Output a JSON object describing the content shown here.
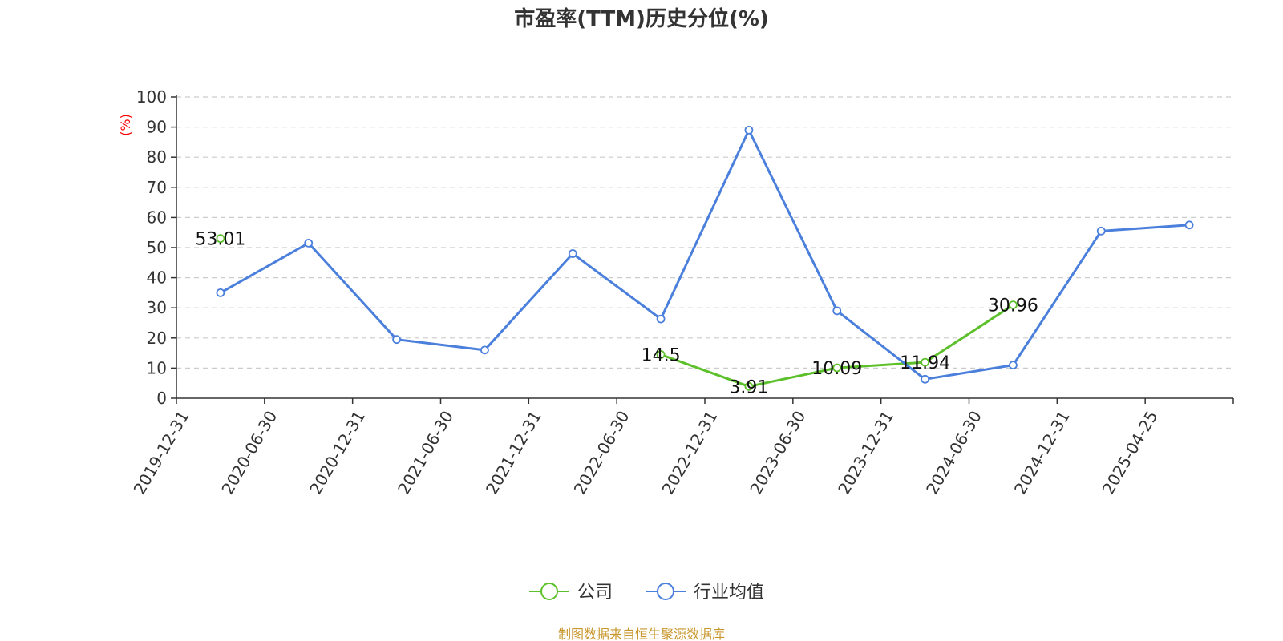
{
  "chart_data": {
    "type": "line",
    "title": "市盈率(TTM)历史分位(%)",
    "ylabel": "(%)",
    "ylim": [
      0,
      100
    ],
    "yticks": [
      "0",
      "10",
      "20",
      "30",
      "40",
      "50",
      "60",
      "70",
      "80",
      "90",
      "100"
    ],
    "categories": [
      "2019-12-31",
      "2020-06-30",
      "2020-12-31",
      "2021-06-30",
      "2021-12-31",
      "2022-06-30",
      "2022-12-31",
      "2023-06-30",
      "2023-12-31",
      "2024-06-30",
      "2024-12-31",
      "2025-04-25"
    ],
    "grid": true,
    "legend_position": "bottom",
    "series": [
      {
        "name": "公司",
        "color": "#5cc02a",
        "values": [
          53.01,
          null,
          null,
          null,
          null,
          14.5,
          3.91,
          10.09,
          11.94,
          30.96,
          null,
          null
        ],
        "labels": [
          "53.01",
          null,
          null,
          null,
          null,
          "14.5",
          "3.91",
          "10.09",
          "11.94",
          "30.96",
          null,
          null
        ]
      },
      {
        "name": "行业均值",
        "color": "#4a7fdc",
        "values": [
          35,
          51.5,
          19.5,
          16,
          48,
          26.3,
          89,
          29,
          6.3,
          11,
          55.5,
          57.5
        ]
      }
    ]
  },
  "source_text": "制图数据来自恒生聚源数据库"
}
